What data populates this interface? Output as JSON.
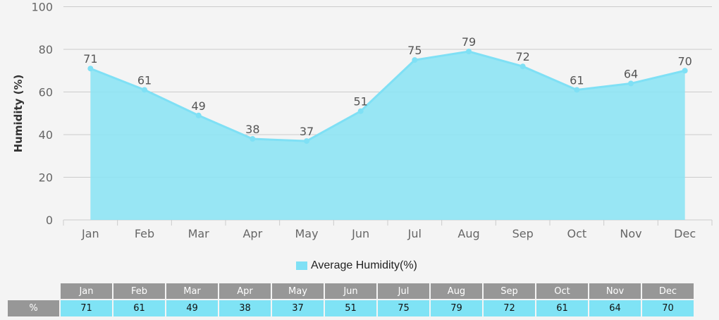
{
  "chart_data": {
    "type": "area",
    "categories": [
      "Jan",
      "Feb",
      "Mar",
      "Apr",
      "May",
      "Jun",
      "Jul",
      "Aug",
      "Sep",
      "Oct",
      "Nov",
      "Dec"
    ],
    "series": [
      {
        "name": "Average Humidity(%)",
        "values": [
          71,
          61,
          49,
          38,
          37,
          51,
          75,
          79,
          72,
          61,
          64,
          70
        ]
      }
    ],
    "ylabel": "Humidity (%)",
    "xlabel": "",
    "ylim": [
      0,
      100
    ],
    "yticks": [
      0,
      20,
      40,
      60,
      80,
      100
    ],
    "grid": true,
    "legend": "bottom-center",
    "colors": {
      "fill": "#8ee4f4",
      "line": "#7fe0f5",
      "grid": "#cccccc"
    }
  },
  "table": {
    "row_label": "%"
  }
}
